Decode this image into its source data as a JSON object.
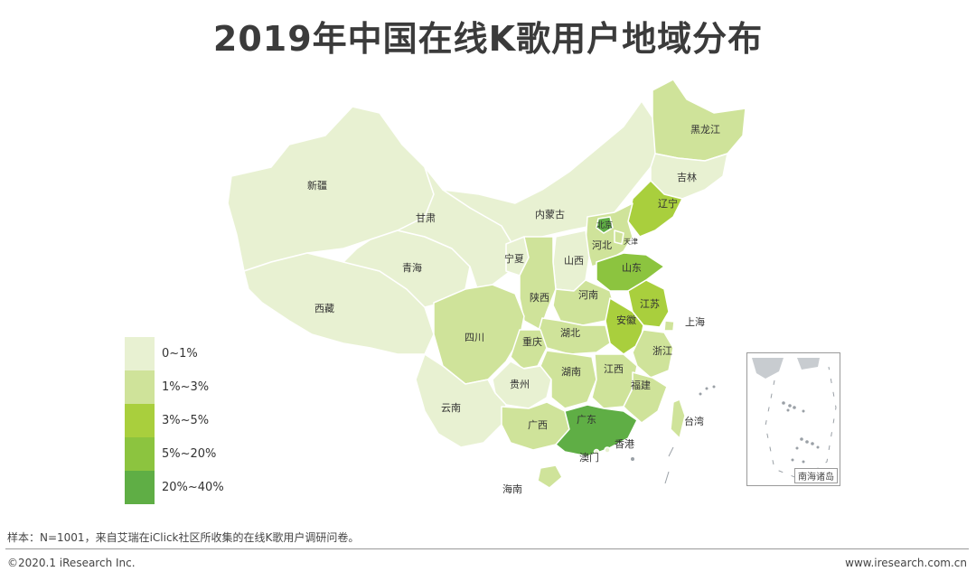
{
  "title": "2019年中国在线K歌用户地域分布",
  "colors": {
    "c0": "#e8f1d2",
    "c1": "#cfe39a",
    "c2": "#a9cf3d",
    "c3": "#8cc43f",
    "c4": "#5fae45"
  },
  "legend": [
    {
      "label": "0~1%",
      "color_key": "c0"
    },
    {
      "label": "1%~3%",
      "color_key": "c1"
    },
    {
      "label": "3%~5%",
      "color_key": "c2"
    },
    {
      "label": "5%~20%",
      "color_key": "c3"
    },
    {
      "label": "20%~40%",
      "color_key": "c4"
    }
  ],
  "provinces": {
    "xinjiang": {
      "label": "新疆",
      "color_key": "c0"
    },
    "xizang": {
      "label": "西藏",
      "color_key": "c0"
    },
    "qinghai": {
      "label": "青海",
      "color_key": "c0"
    },
    "gansu": {
      "label": "甘肃",
      "color_key": "c0"
    },
    "neimenggu": {
      "label": "内蒙古",
      "color_key": "c0"
    },
    "ningxia": {
      "label": "宁夏",
      "color_key": "c0"
    },
    "heilongjiang": {
      "label": "黑龙江",
      "color_key": "c1"
    },
    "jilin": {
      "label": "吉林",
      "color_key": "c0"
    },
    "liaoning": {
      "label": "辽宁",
      "color_key": "c2"
    },
    "beijing": {
      "label": "北京",
      "color_key": "c4"
    },
    "tianjin": {
      "label": "天津",
      "color_key": "c1"
    },
    "hebei": {
      "label": "河北",
      "color_key": "c1"
    },
    "shanxi": {
      "label": "山西",
      "color_key": "c0"
    },
    "shandong": {
      "label": "山东",
      "color_key": "c3"
    },
    "shaanxi": {
      "label": "陕西",
      "color_key": "c1"
    },
    "henan": {
      "label": "河南",
      "color_key": "c1"
    },
    "jiangsu": {
      "label": "江苏",
      "color_key": "c2"
    },
    "anhui": {
      "label": "安徽",
      "color_key": "c2"
    },
    "shanghai": {
      "label": "上海",
      "color_key": "c1"
    },
    "zhejiang": {
      "label": "浙江",
      "color_key": "c1"
    },
    "sichuan": {
      "label": "四川",
      "color_key": "c1"
    },
    "chongqing": {
      "label": "重庆",
      "color_key": "c1"
    },
    "hubei": {
      "label": "湖北",
      "color_key": "c1"
    },
    "hunan": {
      "label": "湖南",
      "color_key": "c1"
    },
    "jiangxi": {
      "label": "江西",
      "color_key": "c1"
    },
    "fujian": {
      "label": "福建",
      "color_key": "c1"
    },
    "guizhou": {
      "label": "贵州",
      "color_key": "c0"
    },
    "yunnan": {
      "label": "云南",
      "color_key": "c0"
    },
    "guangxi": {
      "label": "广西",
      "color_key": "c1"
    },
    "guangdong": {
      "label": "广东",
      "color_key": "c4"
    },
    "hainan": {
      "label": "海南",
      "color_key": "c1"
    },
    "taiwan": {
      "label": "台湾",
      "color_key": "c1"
    },
    "xianggang": {
      "label": "香港",
      "color_key": "c0"
    },
    "aomen": {
      "label": "澳门",
      "color_key": "c0"
    }
  },
  "inset_label": "南海诸岛",
  "footnote": "样本：N=1001，来自艾瑞在iClick社区所收集的在线K歌用户调研问卷。",
  "copyright": "©2020.1 iResearch Inc.",
  "website": "www.iresearch.com.cn"
}
